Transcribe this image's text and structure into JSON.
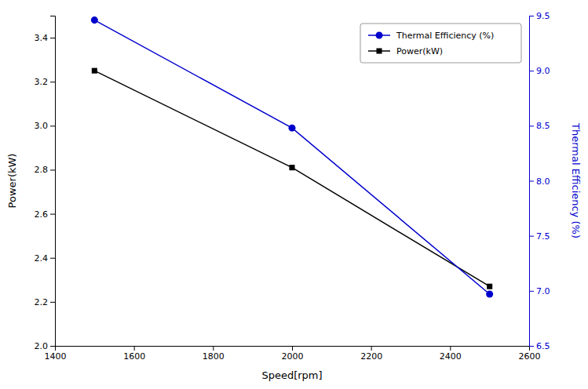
{
  "chart_data": {
    "type": "line",
    "x": [
      1500,
      2000,
      2500
    ],
    "xlabel": "Speed[rpm]",
    "ylabel": "Power(kW)",
    "y2label": "Thermal Efficiency (%)",
    "series": [
      {
        "name": "Power(kW)",
        "color": "#000000",
        "marker": "square",
        "values": [
          3.25,
          2.81,
          2.27
        ]
      },
      {
        "name": "Thermal Efficiency (%)",
        "color": "#0000cd",
        "marker": "circle",
        "axis": "y2",
        "values": [
          9.46,
          8.48,
          6.97
        ]
      }
    ],
    "xlim": [
      1400,
      2600
    ],
    "xticks": [
      1400,
      1600,
      1800,
      2000,
      2200,
      2400,
      2600
    ],
    "ylim": [
      2.0,
      3.5
    ],
    "yticks": [
      {
        "value": 2.0,
        "label": "2.0"
      },
      2.2,
      2.4,
      2.6,
      2.8,
      {
        "value": 3.0,
        "label": "3.0"
      },
      3.2,
      3.4
    ],
    "y2lim": [
      6.5,
      9.5
    ],
    "y2ticks": [
      6.5,
      {
        "value": 7.0,
        "label": "7.0"
      },
      7.5,
      {
        "value": 8.0,
        "label": "8.0"
      },
      8.5,
      {
        "value": 9.0,
        "label": "9.0"
      },
      9.5
    ],
    "legend": "upper right"
  }
}
